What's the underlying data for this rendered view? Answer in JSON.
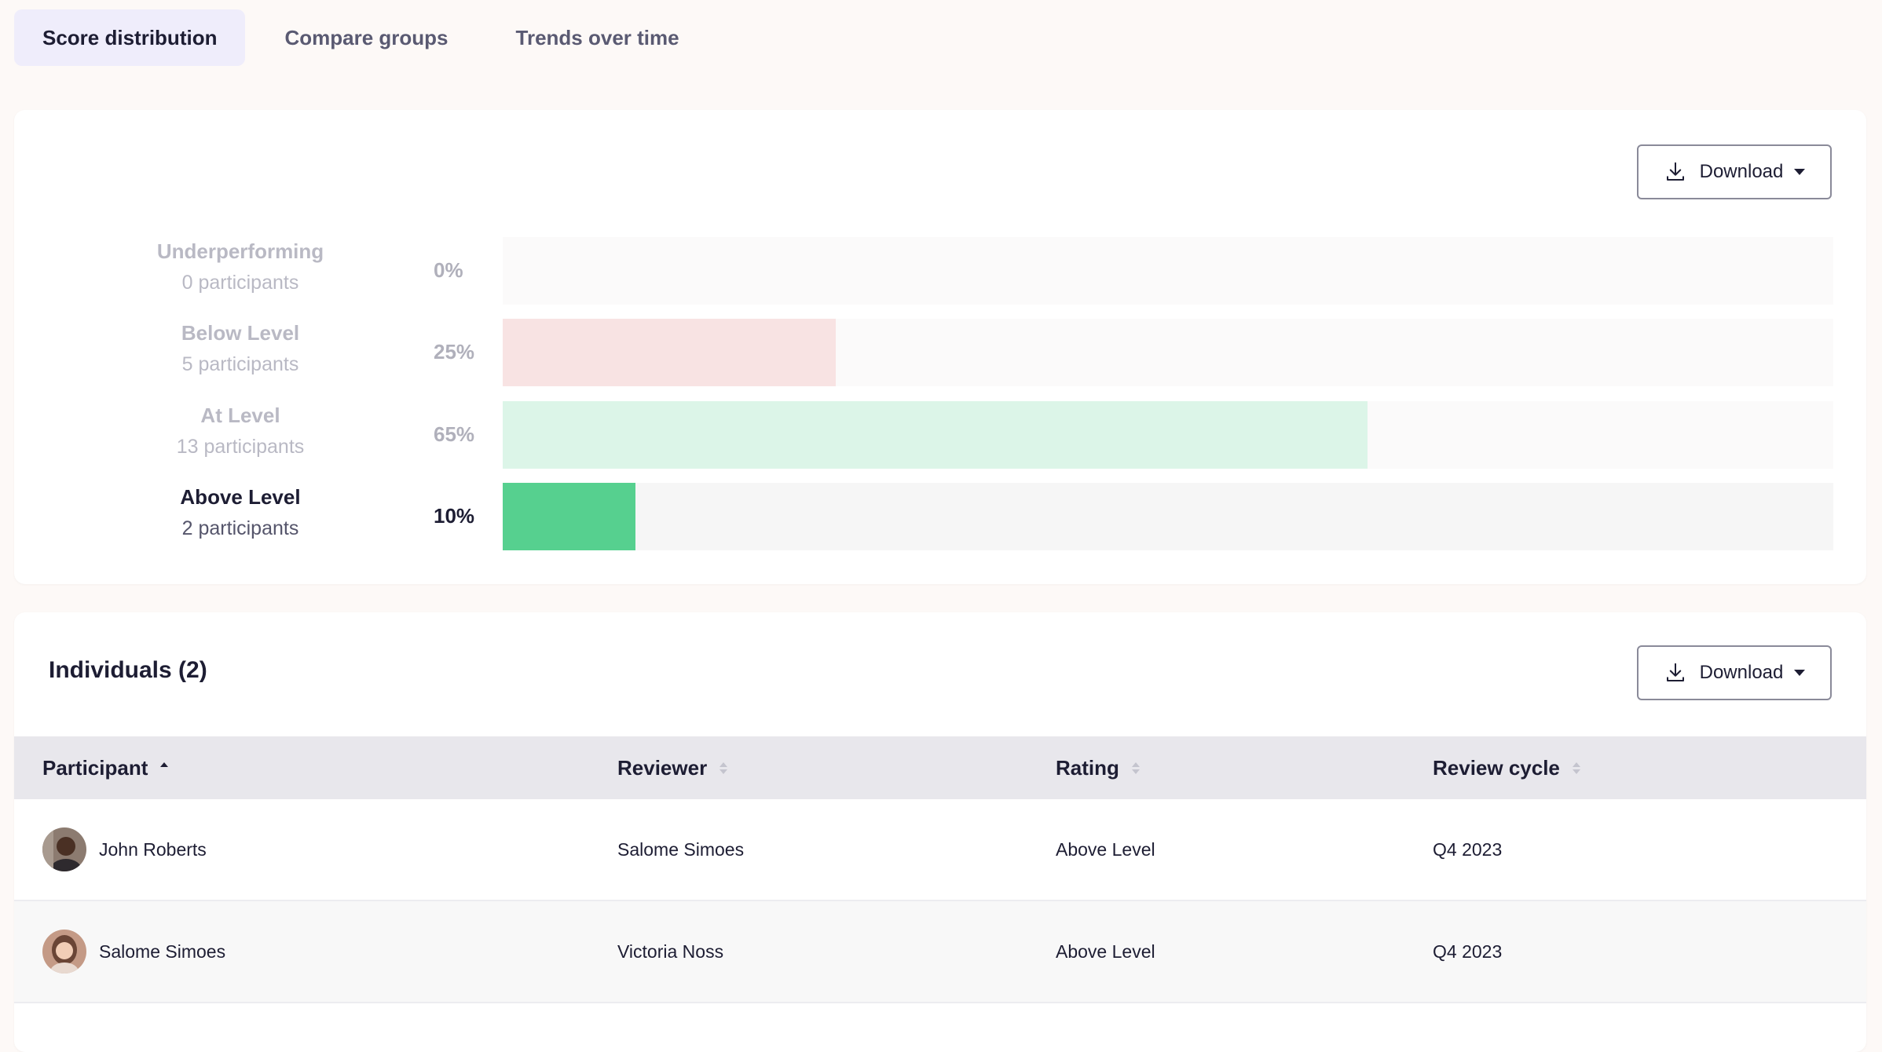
{
  "tabs": [
    {
      "label": "Score distribution",
      "active": true
    },
    {
      "label": "Compare groups",
      "active": false
    },
    {
      "label": "Trends over time",
      "active": false
    }
  ],
  "distribution": {
    "download_label": "Download",
    "rows": [
      {
        "name": "Underperforming",
        "count": "0 participants",
        "percent": "0%",
        "value": 0,
        "color": "#fbfafa"
      },
      {
        "name": "Below Level",
        "count": "5 participants",
        "percent": "25%",
        "value": 25,
        "color": "#f8e3e3"
      },
      {
        "name": "At Level",
        "count": "13 participants",
        "percent": "65%",
        "value": 65,
        "color": "#dcf5e8"
      },
      {
        "name": "Above Level",
        "count": "2 participants",
        "percent": "10%",
        "value": 10,
        "color": "#56d08f"
      }
    ]
  },
  "individuals": {
    "title": "Individuals (2)",
    "download_label": "Download",
    "columns": [
      "Participant",
      "Reviewer",
      "Rating",
      "Review cycle"
    ],
    "rows": [
      {
        "participant": "John Roberts",
        "reviewer": "Salome Simoes",
        "rating": "Above Level",
        "cycle": "Q4 2023"
      },
      {
        "participant": "Salome Simoes",
        "reviewer": "Victoria Noss",
        "rating": "Above Level",
        "cycle": "Q4 2023"
      }
    ]
  }
}
